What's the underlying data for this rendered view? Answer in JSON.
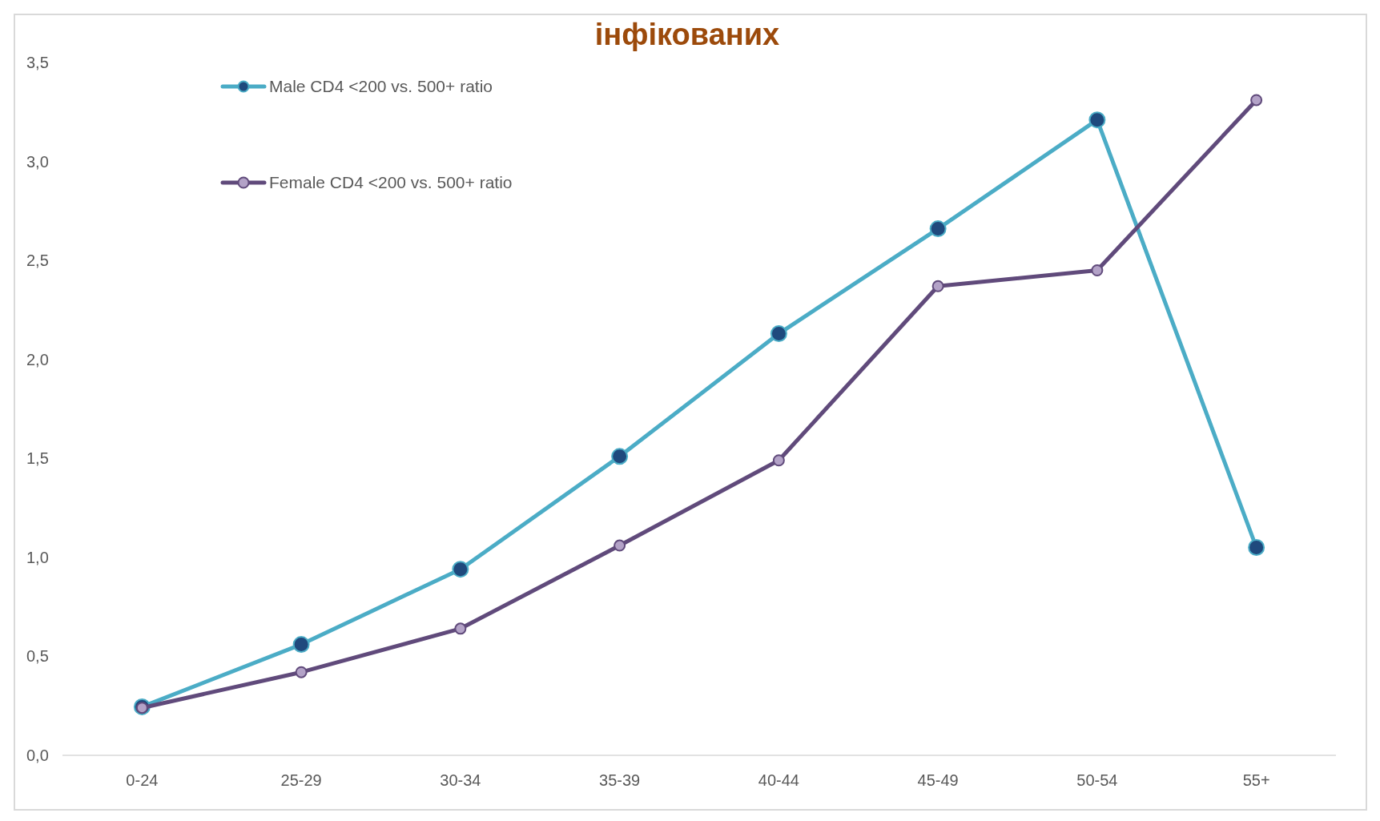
{
  "chart_data": {
    "type": "line",
    "title": "інфікованих",
    "categories": [
      "0-24",
      "25-29",
      "30-34",
      "35-39",
      "40-44",
      "45-49",
      "50-54",
      "55+"
    ],
    "series": [
      {
        "name": "Male CD4 <200 vs. 500+ ratio",
        "color": "#4bacc6",
        "values": [
          0.245,
          0.56,
          0.94,
          1.51,
          2.13,
          2.66,
          3.21,
          1.05
        ]
      },
      {
        "name": "Female CD4 <200 vs. 500+ ratio",
        "color": "#604a7b",
        "values": [
          0.24,
          0.42,
          0.64,
          1.06,
          1.49,
          2.37,
          2.45,
          3.31
        ]
      }
    ],
    "ylim": [
      0,
      3.5
    ],
    "yticks": [
      {
        "value": 0,
        "label": "0,0"
      },
      {
        "value": 0.5,
        "label": "0,5"
      },
      {
        "value": 1,
        "label": "1,0"
      },
      {
        "value": 1.5,
        "label": "1,5"
      },
      {
        "value": 2,
        "label": "2,0"
      },
      {
        "value": 2.5,
        "label": "2,5"
      },
      {
        "value": 3,
        "label": "3,0"
      },
      {
        "value": 3.5,
        "label": "3,5"
      }
    ],
    "grid": false,
    "legend": "top left",
    "marker": "circle",
    "line_style": "solid"
  }
}
